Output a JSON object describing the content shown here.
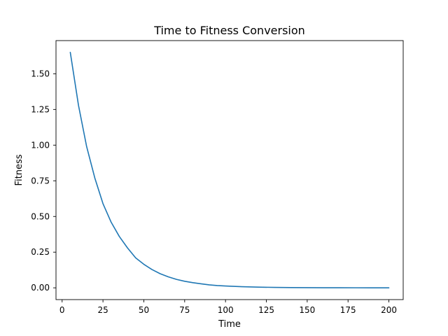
{
  "chart_data": {
    "type": "line",
    "title": "Time to Fitness Conversion",
    "xlabel": "Time",
    "ylabel": "Fitness",
    "xlim": [
      -3.75,
      208.75
    ],
    "ylim": [
      -0.0825,
      1.7325
    ],
    "xticks": [
      0,
      25,
      50,
      75,
      100,
      125,
      150,
      175,
      200
    ],
    "yticks": [
      0.0,
      0.25,
      0.5,
      0.75,
      1.0,
      1.25,
      1.5
    ],
    "ytick_labels": [
      "0.00",
      "0.25",
      "0.50",
      "0.75",
      "1.00",
      "1.25",
      "1.50"
    ],
    "grid": false,
    "series": [
      {
        "color": "#1f77b4",
        "x": [
          5,
          10,
          15,
          20,
          25,
          30,
          35,
          40,
          45,
          50,
          55,
          60,
          65,
          70,
          75,
          80,
          85,
          90,
          95,
          100,
          110,
          120,
          130,
          140,
          150,
          160,
          170,
          180,
          190,
          200
        ],
        "y": [
          1.65,
          1.28,
          0.99,
          0.77,
          0.59,
          0.46,
          0.36,
          0.28,
          0.21,
          0.165,
          0.128,
          0.099,
          0.077,
          0.059,
          0.046,
          0.036,
          0.028,
          0.021,
          0.016,
          0.013,
          0.008,
          0.005,
          0.003,
          0.002,
          0.001,
          0.0007,
          0.0004,
          0.0003,
          0.0002,
          0.0001
        ]
      }
    ]
  }
}
